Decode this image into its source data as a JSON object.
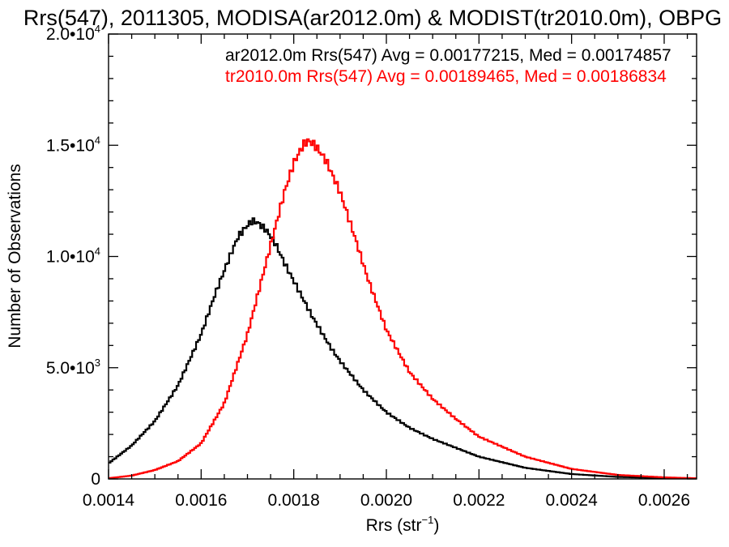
{
  "chart_data": {
    "type": "line",
    "title": "Rrs(547), 2011305, MODISA(ar2012.0m) & MODIST(tr2010.0m), OBPG",
    "xlabel": "Rrs (str",
    "xlabel_sup": "−1",
    "xlabel_close": ")",
    "ylabel": "Number of Observations",
    "xlim": [
      0.0014,
      0.00267
    ],
    "ylim": [
      0,
      20000
    ],
    "x_ticks": [
      0.0014,
      0.0016,
      0.0018,
      0.002,
      0.0022,
      0.0024,
      0.0026
    ],
    "x_tick_labels": [
      "0.0014",
      "0.0016",
      "0.0018",
      "0.0020",
      "0.0022",
      "0.0024",
      "0.0026"
    ],
    "y_ticks": [
      0,
      5000,
      10000,
      15000,
      20000
    ],
    "y_tick_labels": [
      {
        "base": "0",
        "exp": ""
      },
      {
        "base": "5.0•10",
        "exp": "3"
      },
      {
        "base": "1.0•10",
        "exp": "4"
      },
      {
        "base": "1.5•10",
        "exp": "4"
      },
      {
        "base": "2.0•10",
        "exp": "4"
      }
    ],
    "grid": false,
    "line_style": "step",
    "annotations": [
      {
        "text": "ar2012.0m Rrs(547) Avg = 0.00177215, Med = 0.00174857",
        "color": "#000000"
      },
      {
        "text": "tr2010.0m Rrs(547) Avg = 0.00189465, Med = 0.00186834",
        "color": "#ff0000"
      }
    ],
    "series": [
      {
        "color": "#000000",
        "x": [
          0.0014,
          0.00145,
          0.0015,
          0.00155,
          0.0016,
          0.00163,
          0.00166,
          0.00168,
          0.0017,
          0.00171,
          0.00172,
          0.00174,
          0.00176,
          0.00178,
          0.0018,
          0.00182,
          0.00184,
          0.00186,
          0.00188,
          0.0019,
          0.00195,
          0.002,
          0.00205,
          0.0021,
          0.00215,
          0.0022,
          0.0023,
          0.0024,
          0.0025,
          0.0026,
          0.00267
        ],
        "y": [
          700,
          1500,
          2600,
          4200,
          6500,
          8300,
          9900,
          10900,
          11400,
          11600,
          11550,
          11200,
          10600,
          9700,
          8900,
          8100,
          7300,
          6600,
          5900,
          5300,
          4000,
          3000,
          2300,
          1800,
          1400,
          1000,
          500,
          220,
          90,
          40,
          20
        ]
      },
      {
        "color": "#ff0000",
        "x": [
          0.0014,
          0.00145,
          0.0015,
          0.00155,
          0.0016,
          0.00165,
          0.0017,
          0.00173,
          0.00176,
          0.00178,
          0.0018,
          0.00182,
          0.00183,
          0.00184,
          0.00185,
          0.00187,
          0.0019,
          0.00193,
          0.00196,
          0.002,
          0.00205,
          0.0021,
          0.00215,
          0.0022,
          0.0023,
          0.0024,
          0.0025,
          0.0026,
          0.00267
        ],
        "y": [
          30,
          150,
          400,
          800,
          1600,
          3400,
          6500,
          8900,
          11300,
          12900,
          14200,
          15000,
          15200,
          15100,
          14900,
          14300,
          12900,
          11000,
          9000,
          6700,
          4800,
          3600,
          2700,
          1900,
          1000,
          450,
          180,
          70,
          30
        ]
      }
    ]
  }
}
